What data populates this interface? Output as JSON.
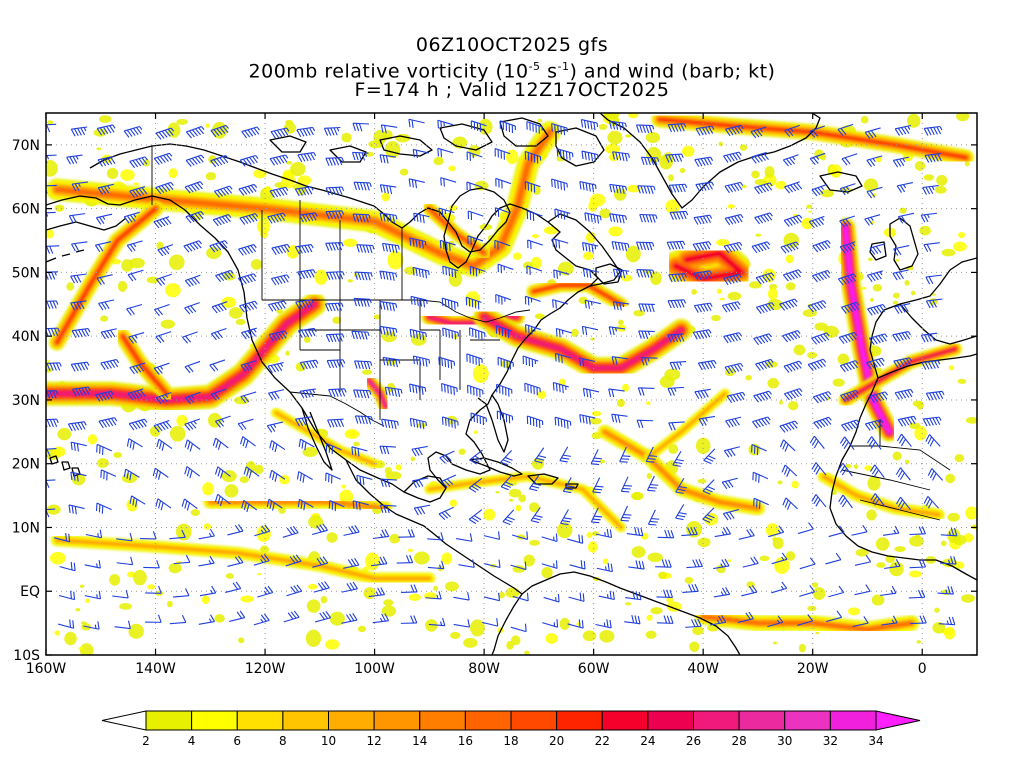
{
  "header": {
    "line1": "06Z10OCT2025 gfs",
    "line2_prefix": "200mb relative vorticity (10",
    "line2_exp1": "-5",
    "line2_mid": " s",
    "line2_exp2": "-1",
    "line2_suffix": ") and wind (barb; kt)",
    "line3": "F=174 h ; Valid 12Z17OCT2025"
  },
  "map": {
    "lon_labels": [
      "160W",
      "140W",
      "120W",
      "100W",
      "80W",
      "60W",
      "40W",
      "20W",
      "0"
    ],
    "lat_labels": [
      "70N",
      "60N",
      "50N",
      "40N",
      "30N",
      "20N",
      "10N",
      "EQ",
      "10S"
    ],
    "lon_values": [
      -160,
      -140,
      -120,
      -100,
      -80,
      -60,
      -40,
      -20,
      0
    ],
    "lat_values": [
      70,
      60,
      50,
      40,
      30,
      20,
      10,
      0,
      -10
    ],
    "extent": {
      "lon_min": -160,
      "lon_max": 10,
      "lat_min": -10,
      "lat_max": 75
    },
    "barb_color": "#1f3fdc",
    "coast_color": "#000000"
  },
  "legend": {
    "values": [
      "2",
      "4",
      "6",
      "8",
      "10",
      "12",
      "14",
      "16",
      "18",
      "20",
      "22",
      "24",
      "26",
      "28",
      "30",
      "32",
      "34"
    ],
    "colors": [
      "#e6f000",
      "#ffff00",
      "#ffe000",
      "#ffc600",
      "#ffae00",
      "#ff9600",
      "#ff7e00",
      "#ff6400",
      "#ff4800",
      "#ff2400",
      "#f5002a",
      "#ee0050",
      "#ef1a7c",
      "#ec2aa0",
      "#ec32c0",
      "#f020dc",
      "#ff20ff"
    ]
  },
  "vorticity_bands": [
    {
      "name": "arctic-jet",
      "points": [
        [
          -158,
          63
        ],
        [
          -140,
          61.5
        ],
        [
          -120,
          60
        ],
        [
          -100,
          58
        ],
        [
          -88,
          53
        ],
        [
          -82,
          51
        ],
        [
          -77,
          54
        ],
        [
          -74,
          60
        ],
        [
          -72,
          67
        ],
        [
          -68,
          72
        ]
      ],
      "width": 22,
      "level": 7
    },
    {
      "name": "pacific-nw-band",
      "points": [
        [
          -158,
          39
        ],
        [
          -152,
          48
        ],
        [
          -147,
          55
        ],
        [
          -140,
          60
        ]
      ],
      "width": 16,
      "level": 9
    },
    {
      "name": "pacific-trough",
      "points": [
        [
          -160,
          31
        ],
        [
          -148,
          31
        ],
        [
          -138,
          30
        ],
        [
          -130,
          30.5
        ],
        [
          -124,
          34
        ],
        [
          -119,
          39
        ],
        [
          -116,
          42
        ],
        [
          -111,
          45
        ]
      ],
      "width": 24,
      "level": 12
    },
    {
      "name": "pacific-branch",
      "points": [
        [
          -146,
          40
        ],
        [
          -143,
          36
        ],
        [
          -138,
          31
        ]
      ],
      "width": 16,
      "level": 9
    },
    {
      "name": "texas-cutoff",
      "points": [
        [
          -101,
          33
        ],
        [
          -99,
          31
        ],
        [
          -98,
          29
        ]
      ],
      "width": 14,
      "level": 13
    },
    {
      "name": "great-lakes",
      "points": [
        [
          -90,
          43
        ],
        [
          -86,
          42
        ],
        [
          -82,
          42
        ],
        [
          -78,
          43
        ],
        [
          -74,
          43
        ]
      ],
      "width": 16,
      "level": 12
    },
    {
      "name": "atlantic-jet",
      "points": [
        [
          -80,
          43
        ],
        [
          -74,
          40
        ],
        [
          -66,
          38
        ],
        [
          -60,
          35
        ],
        [
          -55,
          35
        ],
        [
          -49,
          38
        ],
        [
          -44,
          41
        ]
      ],
      "width": 22,
      "level": 12
    },
    {
      "name": "newfoundland",
      "points": [
        [
          -71,
          47
        ],
        [
          -66,
          48
        ],
        [
          -61,
          48
        ],
        [
          -55,
          45
        ]
      ],
      "width": 14,
      "level": 9
    },
    {
      "name": "north-atlantic-low",
      "points": [
        [
          -43,
          52
        ],
        [
          -37,
          53
        ],
        [
          -33,
          50
        ],
        [
          -40,
          49
        ],
        [
          -45,
          51
        ]
      ],
      "width": 30,
      "level": 10
    },
    {
      "name": "greenland-north",
      "points": [
        [
          -48,
          74
        ],
        [
          -35,
          73
        ],
        [
          -20,
          72
        ],
        [
          -5,
          70
        ],
        [
          8,
          68
        ]
      ],
      "width": 16,
      "level": 9
    },
    {
      "name": "iberia-trough",
      "points": [
        [
          -14,
          57
        ],
        [
          -13,
          48
        ],
        [
          -11,
          38
        ],
        [
          -9,
          30
        ],
        [
          -6,
          25
        ]
      ],
      "width": 20,
      "level": 17
    },
    {
      "name": "iberia-arm",
      "points": [
        [
          -14,
          30
        ],
        [
          -8,
          33
        ],
        [
          -2,
          36
        ],
        [
          6,
          38
        ]
      ],
      "width": 14,
      "level": 11
    },
    {
      "name": "subtropical-atlantic",
      "points": [
        [
          -58,
          25
        ],
        [
          -50,
          21
        ],
        [
          -44,
          16
        ],
        [
          -37,
          14
        ],
        [
          -30,
          13
        ]
      ],
      "width": 14,
      "level": 6
    },
    {
      "name": "central-atlantic",
      "points": [
        [
          -36,
          31
        ],
        [
          -44,
          25
        ],
        [
          -50,
          21
        ]
      ],
      "width": 10,
      "level": 5
    },
    {
      "name": "tropical-pacific",
      "points": [
        [
          -130,
          14
        ],
        [
          -120,
          14
        ],
        [
          -108,
          14
        ],
        [
          -98,
          13
        ]
      ],
      "width": 14,
      "level": 6
    },
    {
      "name": "tropical-pacific-south",
      "points": [
        [
          -158,
          8
        ],
        [
          -140,
          7
        ],
        [
          -125,
          6
        ],
        [
          -110,
          4
        ],
        [
          -100,
          2
        ],
        [
          -90,
          2
        ]
      ],
      "width": 12,
      "level": 5
    },
    {
      "name": "caribbean-band",
      "points": [
        [
          -90,
          16
        ],
        [
          -82,
          17
        ],
        [
          -72,
          18
        ],
        [
          -62,
          16
        ],
        [
          -55,
          10
        ]
      ],
      "width": 10,
      "level": 5
    },
    {
      "name": "south-atlantic",
      "points": [
        [
          -40,
          -4
        ],
        [
          -30,
          -5
        ],
        [
          -20,
          -5
        ],
        [
          -10,
          -6
        ],
        [
          -2,
          -5
        ]
      ],
      "width": 16,
      "level": 7
    },
    {
      "name": "hudson-bay",
      "points": [
        [
          -90,
          60
        ],
        [
          -85,
          56
        ],
        [
          -80,
          53
        ]
      ],
      "width": 14,
      "level": 8
    },
    {
      "name": "west-africa",
      "points": [
        [
          -18,
          18
        ],
        [
          -12,
          15
        ],
        [
          -5,
          13
        ],
        [
          3,
          12
        ]
      ],
      "width": 12,
      "level": 5
    },
    {
      "name": "eastern-pacific-ne",
      "points": [
        [
          -118,
          28
        ],
        [
          -112,
          25
        ],
        [
          -106,
          22
        ],
        [
          -100,
          20
        ]
      ],
      "width": 10,
      "level": 5
    }
  ]
}
